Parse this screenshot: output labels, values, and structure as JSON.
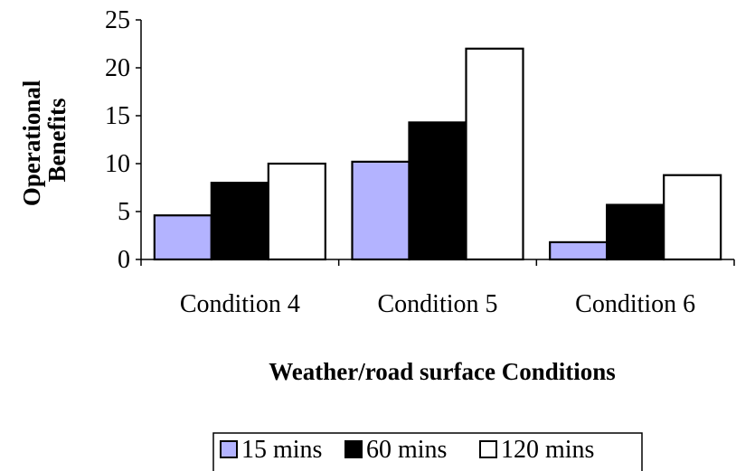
{
  "chart_data": {
    "type": "bar",
    "title": "",
    "xlabel": "Weather/road surface Conditions",
    "ylabel": [
      "Operational",
      "Benefits"
    ],
    "categories": [
      "Condition 4",
      "Condition 5",
      "Condition 6"
    ],
    "series": [
      {
        "name": "15 mins",
        "values": [
          4.6,
          10.2,
          1.8
        ],
        "color": "#b3b3ff"
      },
      {
        "name": "60 mins",
        "values": [
          8.0,
          14.3,
          5.7
        ],
        "color": "#000000"
      },
      {
        "name": "120 mins",
        "values": [
          10.0,
          22.0,
          8.8
        ],
        "color": "#ffffff"
      }
    ],
    "ylim": [
      0,
      25
    ],
    "yticks": [
      "0",
      "5",
      "10",
      "15",
      "20",
      "25"
    ],
    "grid": false,
    "legend_position": "bottom"
  }
}
